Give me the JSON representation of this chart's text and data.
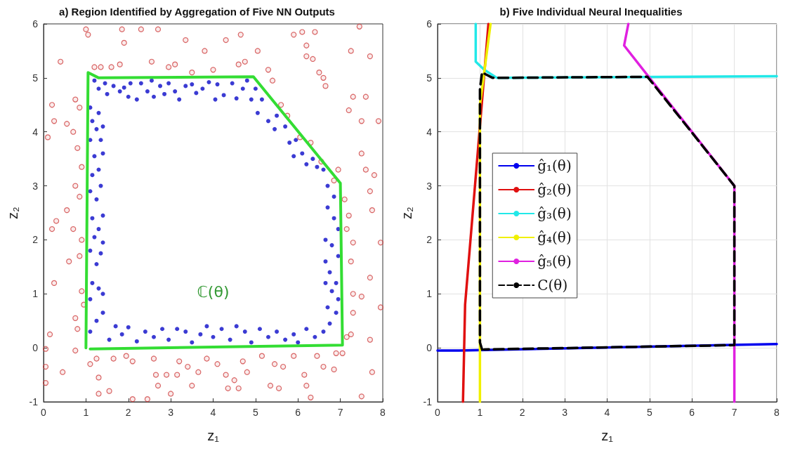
{
  "chart_data": [
    {
      "type": "scatter",
      "title": "a) Region Identified by Aggregation of Five NN Outputs",
      "xlabel": "z₁",
      "ylabel": "z₂",
      "xlim": [
        0,
        8
      ],
      "xticks": [
        0,
        1,
        2,
        3,
        4,
        5,
        6,
        7,
        8
      ],
      "ylim": [
        -1,
        6
      ],
      "yticks": [
        -1,
        0,
        1,
        2,
        3,
        4,
        5,
        6
      ],
      "grid": false,
      "legend": false,
      "annotations": [
        "ℂ(θ)"
      ],
      "series": [
        {
          "color": "#0a0ac8",
          "marker": "circle",
          "x": [
            1.2,
            1.3,
            1.45,
            1.5,
            1.65,
            1.8,
            1.9,
            2.0,
            2.05,
            2.2,
            2.3,
            2.45,
            2.55,
            2.6,
            2.75,
            2.85,
            2.95,
            3.1,
            3.2,
            3.35,
            3.5,
            3.6,
            3.75,
            3.9,
            4.05,
            4.1,
            4.25,
            4.45,
            4.55,
            4.7,
            4.8,
            4.9,
            5.0,
            5.05,
            5.15,
            5.3,
            5.45,
            5.5,
            5.7,
            5.8,
            5.9,
            5.95,
            6.1,
            6.2,
            6.35,
            6.45,
            6.6,
            6.7,
            6.85,
            6.7,
            6.85,
            6.95,
            6.65,
            6.8,
            6.95,
            6.65,
            6.75,
            6.9,
            6.65,
            6.8,
            6.95,
            6.7,
            6.9,
            6.75,
            6.6,
            6.4,
            6.2,
            6.0,
            5.9,
            5.7,
            5.5,
            5.3,
            5.1,
            4.9,
            4.75,
            4.55,
            4.4,
            4.2,
            4.0,
            3.85,
            3.7,
            3.5,
            3.35,
            3.15,
            2.95,
            2.8,
            2.6,
            2.4,
            2.2,
            2.0,
            1.85,
            1.7,
            1.55,
            1.1,
            1.25,
            1.4,
            1.1,
            1.3,
            1.4,
            1.15,
            1.25,
            1.35,
            1.1,
            1.2,
            1.4,
            1.15,
            1.3,
            1.4,
            1.1,
            1.25,
            1.35,
            1.15,
            1.3,
            1.4,
            1.2,
            1.35,
            1.1,
            1.25,
            1.4,
            1.15,
            1.3,
            1.1
          ],
          "values": [
            4.95,
            4.8,
            4.9,
            4.7,
            4.85,
            4.75,
            4.82,
            4.65,
            4.9,
            4.6,
            4.9,
            4.75,
            4.95,
            4.65,
            4.85,
            4.7,
            4.9,
            4.75,
            4.6,
            4.85,
            4.88,
            4.72,
            4.8,
            4.92,
            4.6,
            4.88,
            4.68,
            4.9,
            4.62,
            4.8,
            4.95,
            4.6,
            4.8,
            4.35,
            4.6,
            4.2,
            4.05,
            4.3,
            4.1,
            3.8,
            3.55,
            3.85,
            3.6,
            3.4,
            3.5,
            3.35,
            3.3,
            3.0,
            2.8,
            2.6,
            2.4,
            2.2,
            2.0,
            1.9,
            1.7,
            1.6,
            1.4,
            1.2,
            1.2,
            1.05,
            0.9,
            0.75,
            0.65,
            0.45,
            0.3,
            0.2,
            0.35,
            0.1,
            0.25,
            0.15,
            0.3,
            0.2,
            0.35,
            0.1,
            0.3,
            0.4,
            0.15,
            0.35,
            0.2,
            0.4,
            0.25,
            0.1,
            0.3,
            0.35,
            0.15,
            0.35,
            0.2,
            0.3,
            0.12,
            0.38,
            0.25,
            0.4,
            0.15,
            0.3,
            0.5,
            0.65,
            0.9,
            1.1,
            1.0,
            1.2,
            1.55,
            1.75,
            1.8,
            2.05,
            1.95,
            2.4,
            2.2,
            2.45,
            2.9,
            2.75,
            3.0,
            3.2,
            3.3,
            3.6,
            3.55,
            3.85,
            3.85,
            4.05,
            4.1,
            4.2,
            4.35,
            4.45
          ]
        },
        {
          "color": "#d04040",
          "marker": "circle",
          "x": [
            1.0,
            1.05,
            1.2,
            1.35,
            1.6,
            1.8,
            1.9,
            1.85,
            2.3,
            2.55,
            2.7,
            2.95,
            3.1,
            3.35,
            3.5,
            3.8,
            4.0,
            4.3,
            4.6,
            4.65,
            4.75,
            5.05,
            5.3,
            5.4,
            5.9,
            6.1,
            6.2,
            6.2,
            6.35,
            6.4,
            6.5,
            6.6,
            6.65,
            7.25,
            7.7,
            7.45,
            0.1,
            0.2,
            0.25,
            0.4,
            0.55,
            0.7,
            0.75,
            0.8,
            0.85,
            0.9,
            0.75,
            0.85,
            0.55,
            0.3,
            0.2,
            0.7,
            0.9,
            0.6,
            0.85,
            0.25,
            0.9,
            0.95,
            0.75,
            0.8,
            0.15,
            0.75,
            0.05,
            0.05,
            0.45,
            0.05,
            7.2,
            7.3,
            7.5,
            7.6,
            7.9,
            7.5,
            7.6,
            7.7,
            7.8,
            7.1,
            7.2,
            7.15,
            7.75,
            7.3,
            7.25,
            7.95,
            7.7,
            7.3,
            7.5,
            7.95,
            7.3,
            7.7,
            7.25,
            7.15,
            7.75,
            7.05,
            5.6,
            5.75,
            6.05,
            6.3,
            6.55,
            6.85,
            6.95,
            1.1,
            1.25,
            1.3,
            1.3,
            1.55,
            1.65,
            1.95,
            2.1,
            2.1,
            2.45,
            2.6,
            2.65,
            2.7,
            2.9,
            3.0,
            3.15,
            3.2,
            3.4,
            3.5,
            3.65,
            3.85,
            4.1,
            4.3,
            4.35,
            4.5,
            4.6,
            4.7,
            4.8,
            5.15,
            5.35,
            5.45,
            5.55,
            5.65,
            5.9,
            6.15,
            6.2,
            6.3,
            6.45,
            6.6,
            6.85,
            6.9,
            7.5
          ],
          "values": [
            5.9,
            5.8,
            5.2,
            5.2,
            5.2,
            5.25,
            5.65,
            5.9,
            5.9,
            5.3,
            5.9,
            5.2,
            5.25,
            5.7,
            5.1,
            5.5,
            5.15,
            5.7,
            5.25,
            5.8,
            5.3,
            5.5,
            5.15,
            4.95,
            5.8,
            5.85,
            5.6,
            5.4,
            5.35,
            5.85,
            5.1,
            5.0,
            4.85,
            5.5,
            5.4,
            5.95,
            3.9,
            4.5,
            4.2,
            5.3,
            4.15,
            4.0,
            4.6,
            3.7,
            4.45,
            3.35,
            3.0,
            2.8,
            2.55,
            2.35,
            2.2,
            2.2,
            2.0,
            1.6,
            1.7,
            1.2,
            1.05,
            0.8,
            0.55,
            0.35,
            0.25,
            -0.05,
            -0.02,
            -0.35,
            -0.45,
            -0.65,
            4.4,
            4.65,
            4.2,
            4.65,
            4.2,
            3.6,
            3.3,
            2.9,
            3.2,
            2.75,
            2.45,
            2.2,
            2.55,
            1.95,
            1.6,
            1.95,
            1.3,
            1.0,
            0.95,
            0.75,
            0.65,
            0.15,
            0.25,
            0.2,
            -0.45,
            -0.1,
            4.5,
            4.3,
            3.9,
            3.8,
            3.45,
            3.1,
            3.3,
            -0.3,
            -0.2,
            -0.55,
            -0.85,
            -0.8,
            -0.2,
            -0.15,
            -0.25,
            -0.95,
            -0.95,
            -0.2,
            -0.5,
            -0.7,
            -0.5,
            -0.85,
            -0.5,
            -0.25,
            -0.35,
            -0.7,
            -0.45,
            -0.2,
            -0.3,
            -0.5,
            -0.75,
            -0.6,
            -0.75,
            -0.25,
            -0.45,
            -0.15,
            -0.7,
            -0.3,
            -0.75,
            -0.35,
            -0.15,
            -0.5,
            -0.7,
            -0.92,
            -0.15,
            -0.35,
            -0.4,
            -0.1,
            -0.9
          ]
        },
        {
          "type": "line",
          "color": "#33dd33",
          "marker": "none",
          "line_style": "solid",
          "x": [
            1.0,
            1.05,
            1.3,
            4.95,
            7.0,
            7.05,
            1.1
          ],
          "values": [
            0.0,
            5.1,
            5.0,
            5.02,
            3.05,
            0.05,
            -0.02
          ]
        }
      ]
    },
    {
      "type": "line",
      "title": "b) Five Individual Neural Inequalities",
      "xlabel": "z₁",
      "ylabel": "z₂",
      "xlim": [
        0,
        8
      ],
      "xticks": [
        0,
        1,
        2,
        3,
        4,
        5,
        6,
        7,
        8
      ],
      "ylim": [
        -1,
        6
      ],
      "yticks": [
        -1,
        0,
        1,
        2,
        3,
        4,
        5,
        6
      ],
      "grid": true,
      "legend": "left",
      "marker": "none",
      "series": [
        {
          "name": "ĝ₁(θ)",
          "color": "#0000ee",
          "line_style": "solid",
          "x": [
            0,
            0.5,
            8
          ],
          "values": [
            -0.05,
            -0.05,
            0.07
          ]
        },
        {
          "name": "ĝ₂(θ)",
          "color": "#e01010",
          "line_style": "solid",
          "x": [
            0.6,
            0.65,
            1.2
          ],
          "values": [
            -1,
            0.8,
            6
          ]
        },
        {
          "name": "ĝ₃(θ)",
          "color": "#22e8e8",
          "line_style": "solid",
          "x": [
            0.9,
            0.9,
            1.1,
            1.4,
            8
          ],
          "values": [
            6,
            5.3,
            5.15,
            5.0,
            5.03
          ]
        },
        {
          "name": "ĝ₄(θ)",
          "color": "#f0f000",
          "line_style": "solid",
          "x": [
            1.0,
            1.0,
            1.25
          ],
          "values": [
            -1,
            4.5,
            6
          ]
        },
        {
          "name": "ĝ₅(θ)",
          "color": "#e020e0",
          "line_style": "solid",
          "x": [
            4.5,
            4.4,
            5.0,
            7.0,
            7.0
          ],
          "values": [
            6,
            5.6,
            5.0,
            3.0,
            -1
          ]
        },
        {
          "name": "C(θ)",
          "color": "#000000",
          "line_style": "dashed",
          "x": [
            1.05,
            1.0,
            1.0,
            1.05,
            1.3,
            4.95,
            7.0,
            7.0,
            1.1
          ],
          "values": [
            -0.03,
            0.1,
            4.8,
            5.1,
            5.0,
            5.02,
            3.0,
            0.05,
            -0.03
          ]
        }
      ]
    }
  ]
}
